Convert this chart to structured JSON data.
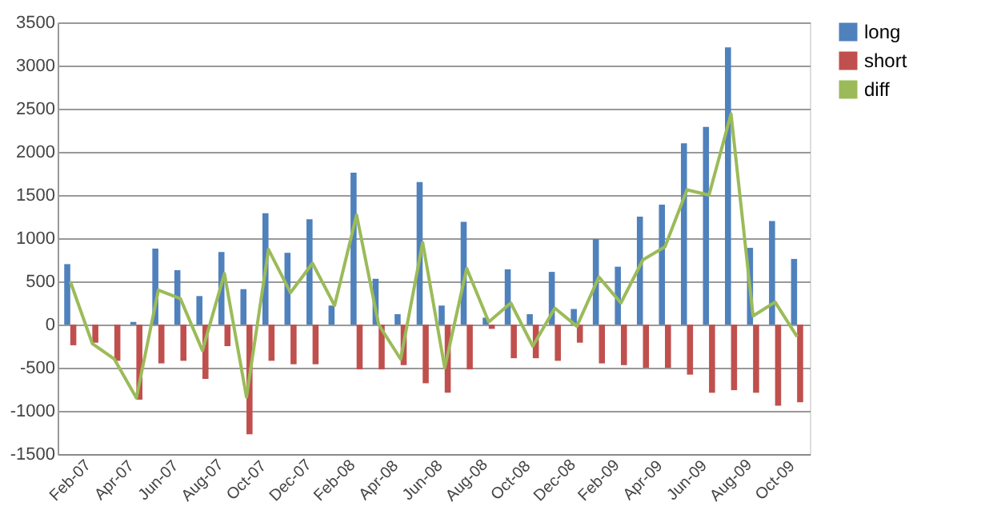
{
  "chart_data": {
    "type": "bar",
    "categories": [
      "Feb-07",
      null,
      "Apr-07",
      null,
      "Jun-07",
      null,
      "Aug-07",
      null,
      "Oct-07",
      null,
      "Dec-07",
      null,
      "Feb-08",
      null,
      "Apr-08",
      null,
      "Jun-08",
      null,
      "Aug-08",
      null,
      "Oct-08",
      null,
      "Dec-08",
      null,
      "Feb-09",
      null,
      "Apr-09",
      null,
      "Jun-09",
      null,
      "Aug-09",
      null,
      "Oct-09",
      null
    ],
    "series": [
      {
        "name": "long",
        "color": "#4f81bd",
        "values": [
          700,
          0,
          0,
          30,
          880,
          630,
          330,
          840,
          410,
          1290,
          830,
          1220,
          220,
          1760,
          530,
          120,
          1650,
          220,
          1190,
          80,
          640,
          120,
          610,
          180,
          990,
          670,
          1250,
          1390,
          2100,
          2290,
          3210,
          890,
          1200,
          760
        ]
      },
      {
        "name": "short",
        "color": "#c0504d",
        "values": [
          -240,
          -210,
          -420,
          -870,
          -450,
          -420,
          -630,
          -250,
          -1270,
          -420,
          -460,
          -460,
          0,
          -520,
          -520,
          -470,
          -680,
          -790,
          -520,
          -50,
          -390,
          -390,
          -420,
          -210,
          -450,
          -470,
          -500,
          -500,
          -580,
          -790,
          -760,
          -790,
          -940,
          -900
        ]
      },
      {
        "name": "diff",
        "type": "line",
        "color": "#9bbb59",
        "values": [
          500,
          -220,
          -400,
          -850,
          400,
          300,
          -300,
          590,
          -840,
          870,
          370,
          710,
          220,
          1270,
          0,
          -400,
          950,
          -500,
          650,
          30,
          250,
          -250,
          190,
          -20,
          550,
          250,
          750,
          900,
          1560,
          1500,
          2440,
          100,
          260,
          -140
        ]
      }
    ],
    "ylim": [
      -1500,
      3500
    ],
    "yticks": [
      -1500,
      -1000,
      -500,
      0,
      500,
      1000,
      1500,
      2000,
      2500,
      3000,
      3500
    ],
    "grid": "y",
    "legend": "right"
  }
}
